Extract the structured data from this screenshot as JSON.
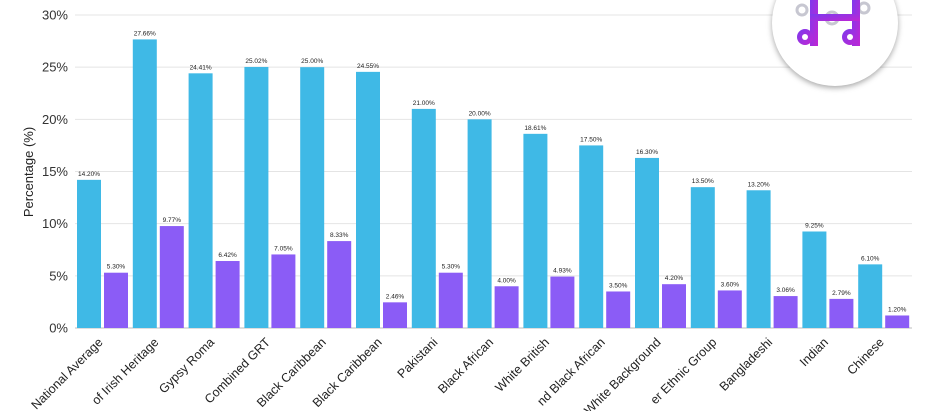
{
  "chart_data": {
    "type": "bar",
    "ylabel": "Percentage (%)",
    "ylim": [
      0,
      30
    ],
    "yticks": [
      0,
      5,
      10,
      15,
      20,
      25,
      30
    ],
    "ytick_labels": [
      "0%",
      "5%",
      "10%",
      "15%",
      "20%",
      "25%",
      "30%"
    ],
    "grid": true,
    "categories": [
      "National Average",
      "of Irish Heritage",
      "Gypsy Roma",
      "Combined GRT",
      "Black Caribbean",
      "Black Caribbean",
      "Pakistani",
      "Black African",
      "White British",
      "nd Black African",
      "White Background",
      "er Ethnic Group",
      "Bangladeshi",
      "Indian",
      "Chinese"
    ],
    "series": [
      {
        "color": "#3fb9e6",
        "values": [
          14.2,
          27.66,
          24.41,
          25.02,
          25.0,
          24.55,
          21.0,
          20.0,
          18.61,
          17.5,
          16.3,
          13.5,
          13.2,
          9.25,
          6.1
        ],
        "labels": [
          "14.20%",
          "27.66%",
          "24.41%",
          "25.02%",
          "25.00%",
          "24.55%",
          "21.00%",
          "20.00%",
          "18.61%",
          "17.50%",
          "16.30%",
          "13.50%",
          "13.20%",
          "9.25%",
          "6.10%"
        ]
      },
      {
        "color": "#8b5cf6",
        "values": [
          5.3,
          9.77,
          6.42,
          7.05,
          8.33,
          2.46,
          5.3,
          4.0,
          4.93,
          3.5,
          4.2,
          3.6,
          3.06,
          2.79,
          1.2
        ],
        "labels": [
          "5.30%",
          "9.77%",
          "6.42%",
          "7.05%",
          "8.33%",
          "2.46%",
          "5.30%",
          "4.00%",
          "4.93%",
          "3.50%",
          "4.20%",
          "3.60%",
          "3.06%",
          "2.79%",
          "1.20%"
        ]
      }
    ]
  },
  "logo": {
    "icon": "gear-logo-icon",
    "accent_from": "#7c3aed",
    "accent_to": "#c026d3"
  }
}
